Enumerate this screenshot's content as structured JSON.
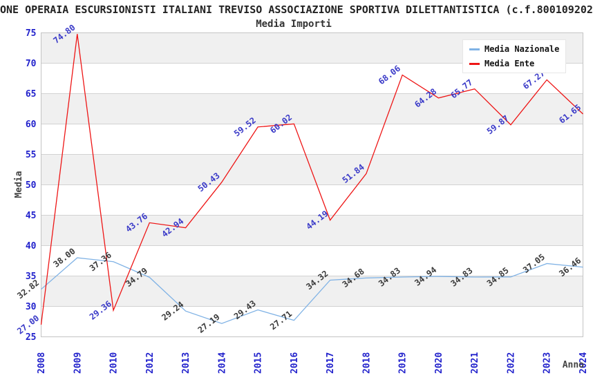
{
  "header": {
    "title": "ONE OPERAIA ESCURSIONISTI ITALIANI TREVISO ASSOCIAZIONE SPORTIVA DILETTANTISTICA (c.f.800109202",
    "subtitle": "Media Importi"
  },
  "legend": {
    "items": [
      {
        "label": "Media Nazionale",
        "color": "#7fb2e5"
      },
      {
        "label": "Media Ente",
        "color": "#ee1515"
      }
    ]
  },
  "chart_data": {
    "type": "line",
    "title": "Media Importi",
    "xlabel": "Anno",
    "ylabel": "Media",
    "ylim": [
      25,
      75
    ],
    "ytick_step": 5,
    "grid": true,
    "banded_background": true,
    "legend_position": "top-right",
    "categories": [
      "2008",
      "2009",
      "2010",
      "2012",
      "2013",
      "2014",
      "2015",
      "2016",
      "2017",
      "2018",
      "2019",
      "2020",
      "2021",
      "2022",
      "2023",
      "2024"
    ],
    "series": [
      {
        "name": "Media Nazionale",
        "color": "#7fb2e5",
        "label_color": "#3a3a3a",
        "values": [
          32.82,
          38.0,
          37.36,
          34.79,
          29.24,
          27.19,
          29.43,
          27.71,
          34.32,
          34.68,
          34.83,
          34.94,
          34.83,
          34.85,
          37.05,
          36.46
        ]
      },
      {
        "name": "Media Ente",
        "color": "#ee1515",
        "label_color": "#3a3ac8",
        "values": [
          27.0,
          74.8,
          29.36,
          43.76,
          42.94,
          50.43,
          59.52,
          60.02,
          44.19,
          51.84,
          68.06,
          64.28,
          65.77,
          59.87,
          67.27,
          61.65
        ]
      }
    ],
    "colors": {
      "band": "#f0f0f0",
      "grid": "#d2d2d2",
      "border": "#c4c4c4",
      "tick_text": "#2222cc"
    }
  }
}
